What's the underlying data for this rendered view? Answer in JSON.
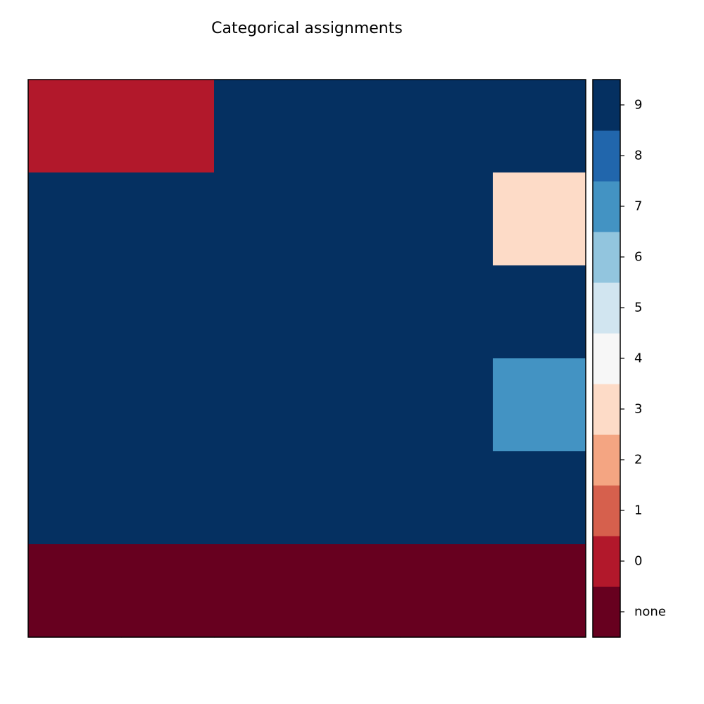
{
  "chart_data": {
    "type": "heatmap",
    "title": "Categorical assignments",
    "xlabel": "",
    "ylabel": "",
    "rows": 6,
    "cols": 6,
    "grid": false,
    "legend": "colorbar-right",
    "categories": [
      "none",
      "0",
      "1",
      "2",
      "3",
      "4",
      "5",
      "6",
      "7",
      "8",
      "9"
    ],
    "category_colors": {
      "none": "#67001f",
      "0": "#b2182b",
      "1": "#d6604d",
      "2": "#f4a582",
      "3": "#fddbc7",
      "4": "#f7f7f7",
      "5": "#d1e5f0",
      "6": "#92c5de",
      "7": "#4393c3",
      "8": "#2166ac",
      "9": "#053061"
    },
    "matrix": [
      [
        "0",
        "0",
        "9",
        "9",
        "9",
        "9"
      ],
      [
        "9",
        "9",
        "9",
        "9",
        "9",
        "3"
      ],
      [
        "9",
        "9",
        "9",
        "9",
        "9",
        "9"
      ],
      [
        "9",
        "9",
        "9",
        "9",
        "9",
        "7"
      ],
      [
        "9",
        "9",
        "9",
        "9",
        "9",
        "9"
      ],
      [
        "none",
        "none",
        "none",
        "none",
        "none",
        "none"
      ]
    ]
  }
}
